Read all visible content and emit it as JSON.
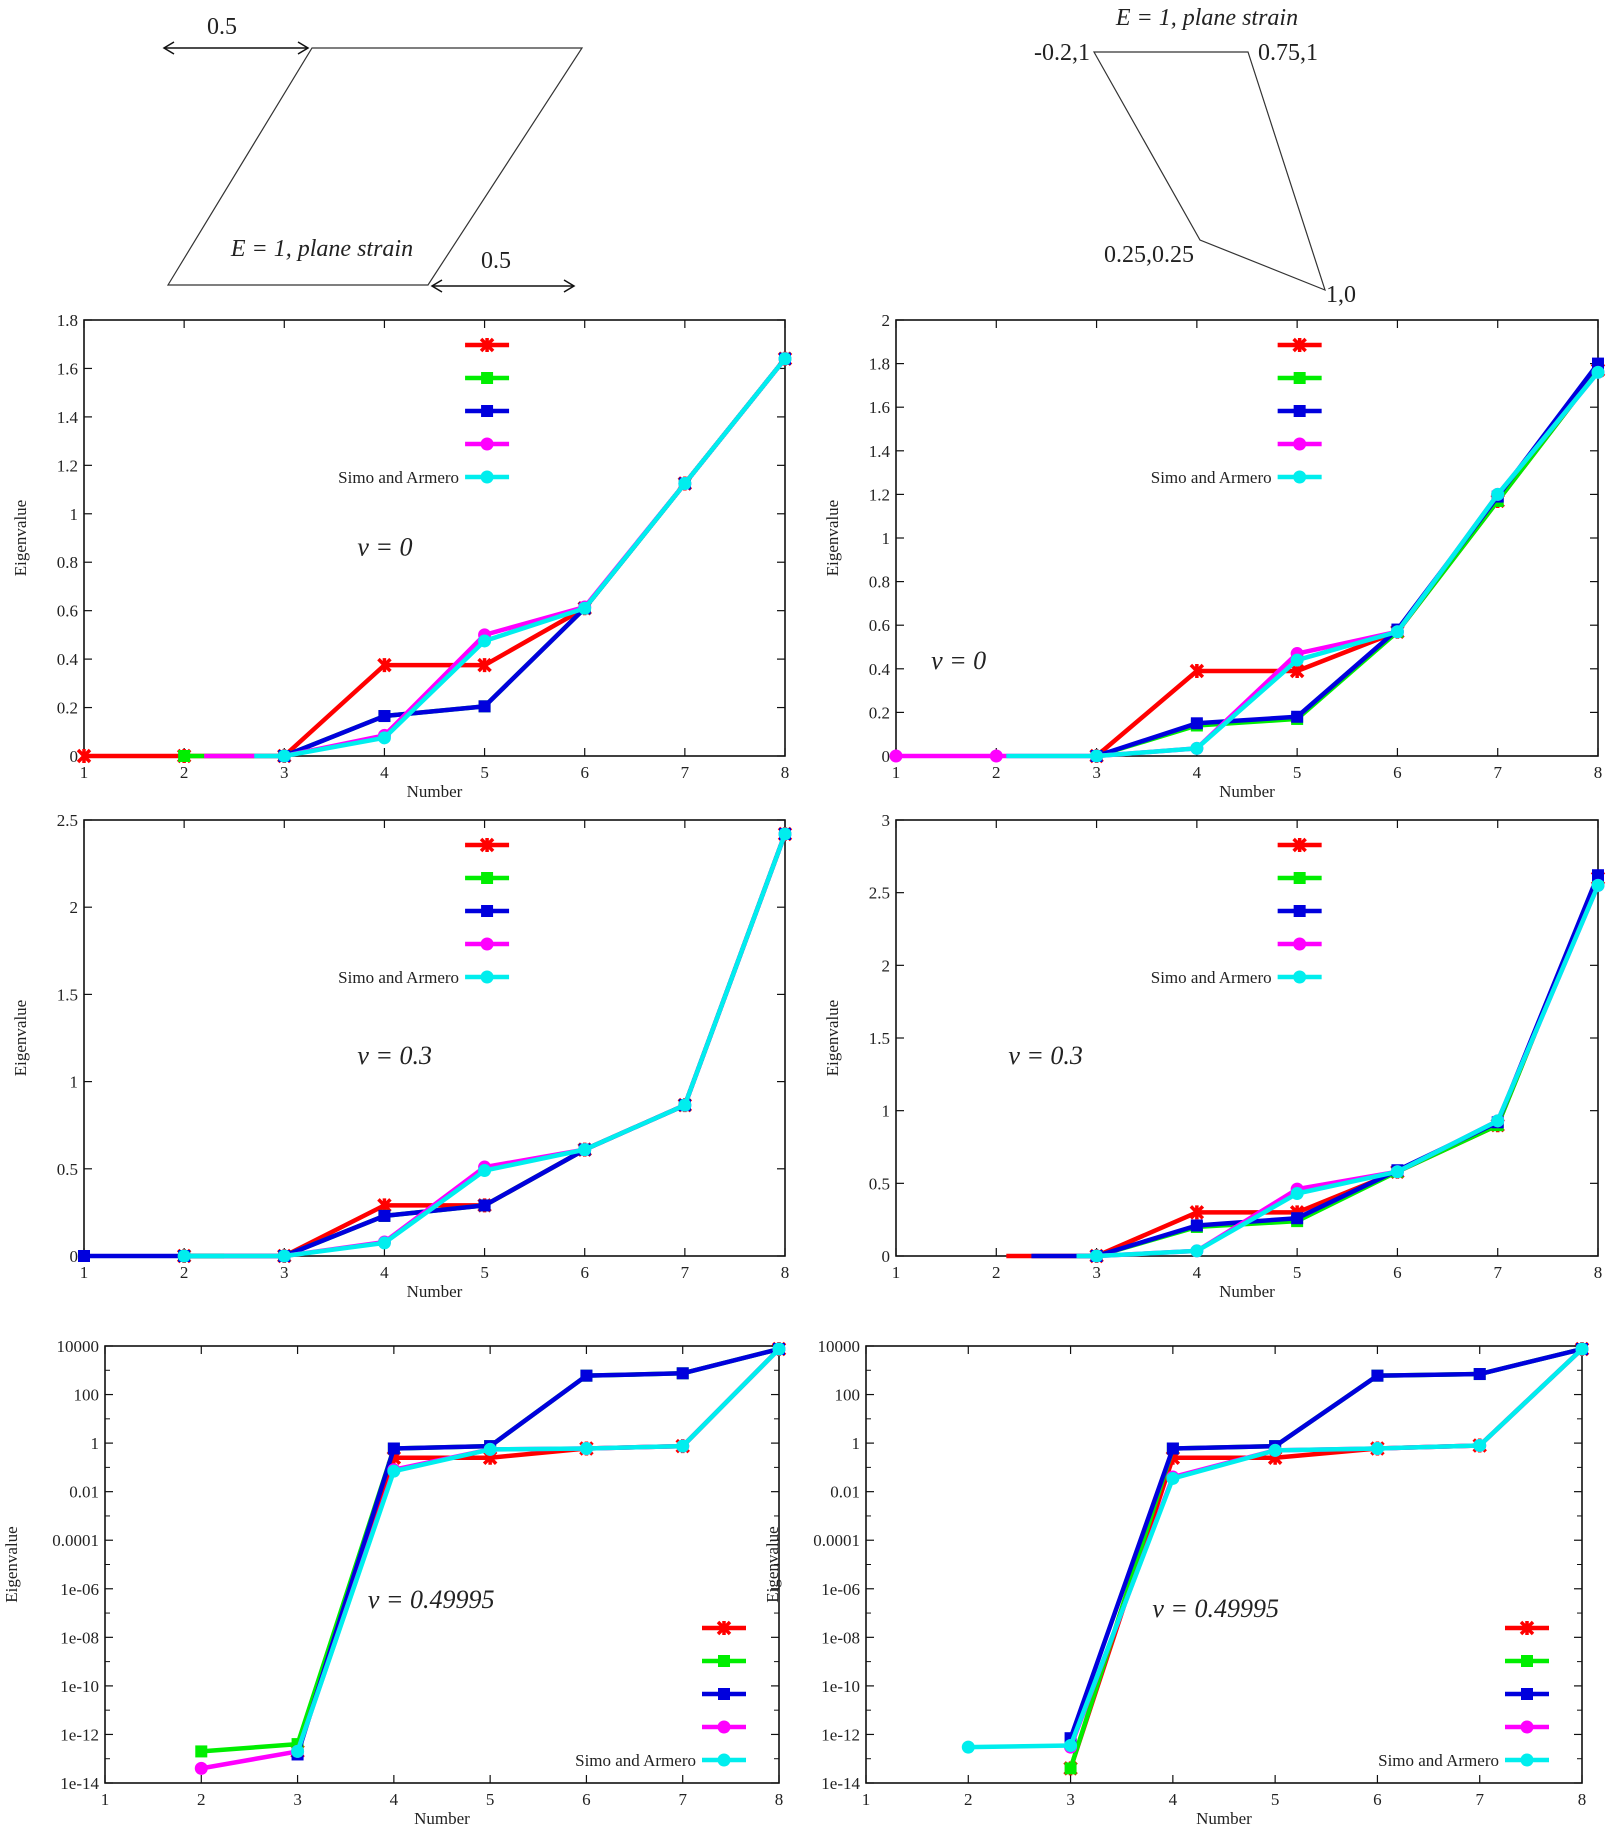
{
  "legend_labels": [
    "",
    "",
    "",
    "",
    "Simo and Armero"
  ],
  "series_colors": [
    "#ff0000",
    "#00ee00",
    "#0000dd",
    "#ff00ff",
    "#00eeee"
  ],
  "series_markers": [
    "cross",
    "square",
    "square",
    "circle",
    "circle"
  ],
  "diagrams": {
    "left": {
      "title": "E = 1, plane strain",
      "dim_top": "0.5",
      "dim_bottom": "0.5"
    },
    "right": {
      "title": "E = 1, plane strain",
      "vertices": [
        "-0.2,1",
        "0.75,1",
        "0.25,0.25",
        "1,0"
      ]
    }
  },
  "chart_data": [
    {
      "id": "left-nu0",
      "type": "line",
      "annotation": "ν = 0",
      "xlabel": "Number",
      "ylabel": "Eigenvalue",
      "xlim": [
        1,
        8
      ],
      "ylim": [
        0,
        1.8
      ],
      "yscale": "linear",
      "xticks": [
        "1",
        "2",
        "3",
        "4",
        "5",
        "6",
        "7",
        "8"
      ],
      "yticks": [
        "0",
        "0.2",
        "0.4",
        "0.6",
        "0.8",
        "1",
        "1.2",
        "1.4",
        "1.6",
        "1.8"
      ],
      "legend": "top-center",
      "series": [
        {
          "name": "",
          "x": [
            1,
            2,
            3,
            4,
            5,
            6,
            7,
            8
          ],
          "values": [
            0,
            0,
            0,
            0.375,
            0.375,
            0.61,
            1.125,
            1.64
          ]
        },
        {
          "name": "",
          "x": [
            2,
            3,
            4,
            5,
            6,
            7,
            8
          ],
          "values": [
            0,
            0,
            0.165,
            0.205,
            0.61,
            1.125,
            1.64
          ]
        },
        {
          "name": "",
          "x": [
            3,
            4,
            5,
            6,
            7,
            8
          ],
          "values": [
            0,
            0.165,
            0.205,
            0.61,
            1.125,
            1.64
          ]
        },
        {
          "name": "",
          "x": [
            2.2,
            3,
            4,
            5,
            6,
            7,
            8
          ],
          "values": [
            0,
            0,
            0.085,
            0.5,
            0.615,
            1.125,
            1.64
          ]
        },
        {
          "name": "Simo and Armero",
          "x": [
            2.7,
            3,
            4,
            5,
            6,
            7,
            8
          ],
          "values": [
            0,
            0,
            0.075,
            0.475,
            0.61,
            1.125,
            1.64
          ]
        }
      ]
    },
    {
      "id": "right-nu0",
      "type": "line",
      "annotation": "ν = 0",
      "xlabel": "Number",
      "ylabel": "Eigenvalue",
      "xlim": [
        1,
        8
      ],
      "ylim": [
        0,
        2
      ],
      "yscale": "linear",
      "xticks": [
        "1",
        "2",
        "3",
        "4",
        "5",
        "6",
        "7",
        "8"
      ],
      "yticks": [
        "0",
        "0.2",
        "0.4",
        "0.6",
        "0.8",
        "1",
        "1.2",
        "1.4",
        "1.6",
        "1.8",
        "2"
      ],
      "legend": "top-center",
      "series": [
        {
          "name": "",
          "x": [
            3,
            4,
            5,
            6,
            7,
            8
          ],
          "values": [
            0,
            0.39,
            0.39,
            0.57,
            1.17,
            1.77
          ]
        },
        {
          "name": "",
          "x": [
            3,
            4,
            5,
            6,
            7,
            8
          ],
          "values": [
            0,
            0.14,
            0.17,
            0.57,
            1.17,
            1.77
          ]
        },
        {
          "name": "",
          "x": [
            3,
            4,
            5,
            6,
            7,
            8
          ],
          "values": [
            0,
            0.15,
            0.18,
            0.58,
            1.19,
            1.8
          ]
        },
        {
          "name": "",
          "x": [
            1,
            2,
            3,
            4,
            5,
            6,
            7,
            8
          ],
          "values": [
            0,
            0,
            0,
            0.035,
            0.47,
            0.57,
            1.2,
            1.76
          ]
        },
        {
          "name": "Simo and Armero",
          "x": [
            2.1,
            3,
            4,
            5,
            6,
            7,
            8
          ],
          "values": [
            0,
            0,
            0.035,
            0.44,
            0.57,
            1.2,
            1.76
          ]
        }
      ]
    },
    {
      "id": "left-nu03",
      "type": "line",
      "annotation": "ν = 0.3",
      "xlabel": "Number",
      "ylabel": "Eigenvalue",
      "xlim": [
        1,
        8
      ],
      "ylim": [
        0,
        2.5
      ],
      "yscale": "linear",
      "xticks": [
        "1",
        "2",
        "3",
        "4",
        "5",
        "6",
        "7",
        "8"
      ],
      "yticks": [
        "0",
        "0.5",
        "1",
        "1.5",
        "2",
        "2.5"
      ],
      "legend": "top-center",
      "series": [
        {
          "name": "",
          "x": [
            2,
            3,
            4,
            5,
            6,
            7,
            8
          ],
          "values": [
            0,
            0,
            0.29,
            0.29,
            0.61,
            0.865,
            2.42
          ]
        },
        {
          "name": "",
          "x": [
            2,
            3,
            4,
            5,
            6,
            7,
            8
          ],
          "values": [
            0,
            0,
            0.23,
            0.29,
            0.61,
            0.865,
            2.42
          ]
        },
        {
          "name": "",
          "x": [
            1,
            2,
            3,
            4,
            5,
            6,
            7,
            8
          ],
          "values": [
            0,
            0,
            0,
            0.23,
            0.29,
            0.61,
            0.865,
            2.42
          ]
        },
        {
          "name": "",
          "x": [
            2.4,
            3,
            4,
            5,
            6,
            7,
            8
          ],
          "values": [
            0,
            0,
            0.08,
            0.51,
            0.61,
            0.865,
            2.42
          ]
        },
        {
          "name": "Simo and Armero",
          "x": [
            2,
            3,
            4,
            5,
            6,
            7,
            8
          ],
          "values": [
            0,
            0,
            0.075,
            0.49,
            0.61,
            0.865,
            2.42
          ]
        }
      ]
    },
    {
      "id": "right-nu03",
      "type": "line",
      "annotation": "ν = 0.3",
      "xlabel": "Number",
      "ylabel": "Eigenvalue",
      "xlim": [
        1,
        8
      ],
      "ylim": [
        0,
        3
      ],
      "yscale": "linear",
      "xticks": [
        "1",
        "2",
        "3",
        "4",
        "5",
        "6",
        "7",
        "8"
      ],
      "yticks": [
        "0",
        "0.5",
        "1",
        "1.5",
        "2",
        "2.5",
        "3"
      ],
      "legend": "top-center",
      "series": [
        {
          "name": "",
          "x": [
            2.1,
            3,
            4,
            5,
            6,
            7,
            8
          ],
          "values": [
            0,
            0,
            0.3,
            0.3,
            0.58,
            0.9,
            2.6
          ]
        },
        {
          "name": "",
          "x": [
            3,
            4,
            5,
            6,
            7,
            8
          ],
          "values": [
            0,
            0.2,
            0.24,
            0.58,
            0.9,
            2.6
          ]
        },
        {
          "name": "",
          "x": [
            2.35,
            3,
            4,
            5,
            6,
            7,
            8
          ],
          "values": [
            0,
            0,
            0.21,
            0.26,
            0.59,
            0.92,
            2.62
          ]
        },
        {
          "name": "",
          "x": [
            3,
            4,
            5,
            6,
            7,
            8
          ],
          "values": [
            0,
            0.035,
            0.46,
            0.58,
            0.93,
            2.55
          ]
        },
        {
          "name": "Simo and Armero",
          "x": [
            2.8,
            3,
            4,
            5,
            6,
            7,
            8
          ],
          "values": [
            0,
            0,
            0.035,
            0.43,
            0.58,
            0.93,
            2.55
          ]
        }
      ]
    },
    {
      "id": "left-nu049995",
      "type": "line",
      "annotation": "ν = 0.49995",
      "xlabel": "Number",
      "ylabel": "Eigenvalue",
      "xlim": [
        1,
        8
      ],
      "ylim": [
        1e-14,
        10000
      ],
      "yscale": "log",
      "xticks": [
        "1",
        "2",
        "3",
        "4",
        "5",
        "6",
        "7",
        "8"
      ],
      "yticks": [
        "1e-14",
        "1e-12",
        "1e-10",
        "1e-08",
        "1e-06",
        "0.0001",
        "0.01",
        "1",
        "100",
        "10000"
      ],
      "legend": "bottom-right",
      "series": [
        {
          "name": "",
          "x": [
            3,
            4,
            5,
            6,
            7,
            8
          ],
          "values": [
            2e-13,
            0.25,
            0.25,
            0.6,
            0.75,
            7500
          ]
        },
        {
          "name": "",
          "x": [
            2,
            3,
            4,
            5,
            6,
            7,
            8
          ],
          "values": [
            2e-13,
            4e-13,
            0.6,
            0.75,
            600,
            750,
            7500
          ]
        },
        {
          "name": "",
          "x": [
            3,
            4,
            5,
            6,
            7,
            8
          ],
          "values": [
            1.5e-13,
            0.6,
            0.75,
            600,
            750,
            7500
          ]
        },
        {
          "name": "",
          "x": [
            2,
            3,
            4,
            5,
            6,
            7,
            8
          ],
          "values": [
            4e-14,
            2e-13,
            0.08,
            0.55,
            0.6,
            0.75,
            7500
          ]
        },
        {
          "name": "Simo and Armero",
          "x": [
            3,
            4,
            5,
            6,
            7,
            8
          ],
          "values": [
            2e-13,
            0.07,
            0.55,
            0.6,
            0.75,
            7500
          ]
        }
      ]
    },
    {
      "id": "right-nu049995",
      "type": "line",
      "annotation": "ν = 0.49995",
      "xlabel": "Number",
      "ylabel": "Eigenvalue",
      "xlim": [
        1,
        8
      ],
      "ylim": [
        1e-14,
        10000
      ],
      "yscale": "log",
      "xticks": [
        "1",
        "2",
        "3",
        "4",
        "5",
        "6",
        "7",
        "8"
      ],
      "yticks": [
        "1e-14",
        "1e-12",
        "1e-10",
        "1e-08",
        "1e-06",
        "0.0001",
        "0.01",
        "1",
        "100",
        "10000"
      ],
      "legend": "bottom-right",
      "series": [
        {
          "name": "",
          "x": [
            3,
            4,
            5,
            6,
            7,
            8
          ],
          "values": [
            4e-14,
            0.25,
            0.25,
            0.6,
            0.8,
            7500
          ]
        },
        {
          "name": "",
          "x": [
            3,
            4,
            5,
            6,
            7,
            8
          ],
          "values": [
            4e-14,
            0.6,
            0.75,
            600,
            700,
            7500
          ]
        },
        {
          "name": "",
          "x": [
            3,
            4,
            5,
            6,
            7,
            8
          ],
          "values": [
            7e-13,
            0.6,
            0.75,
            600,
            700,
            7500
          ]
        },
        {
          "name": "",
          "x": [
            3,
            4,
            5,
            6,
            7,
            8
          ],
          "values": [
            3e-13,
            0.04,
            0.5,
            0.6,
            0.8,
            7500
          ]
        },
        {
          "name": "Simo and Armero",
          "x": [
            2,
            3,
            4,
            5,
            6,
            7,
            8
          ],
          "values": [
            3e-13,
            3.5e-13,
            0.035,
            0.5,
            0.6,
            0.8,
            7500
          ]
        }
      ]
    }
  ]
}
